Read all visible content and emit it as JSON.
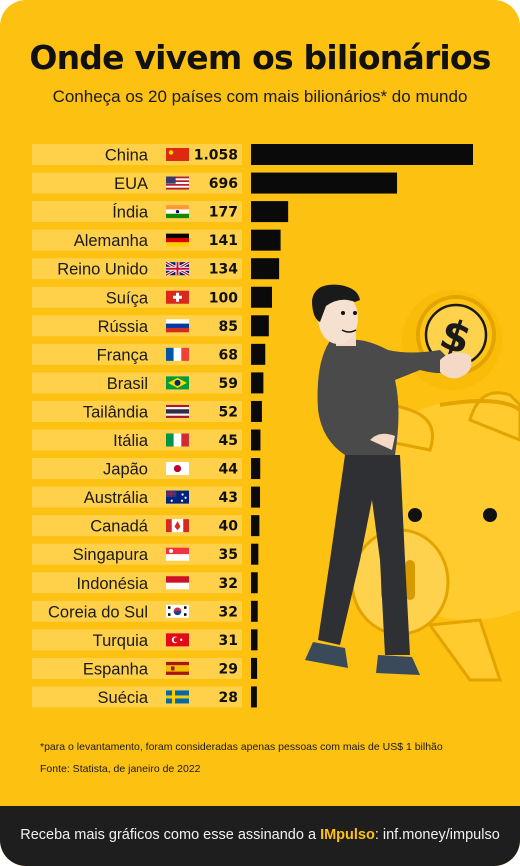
{
  "title": "Onde vivem os bilionários",
  "subtitle": "Conheça os 20 países com mais bilionários* do mundo",
  "note": "*para o levantamento, foram consideradas apenas pessoas com mais de US$ 1 bilhão",
  "source": "Fonte: Statista, de janeiro de 2022",
  "footer": {
    "prefix": "Receba mais gráficos como esse assinando a ",
    "brand": "IMpulso",
    "suffix": ": inf.money/impulso"
  },
  "colors": {
    "background": "#FDC112",
    "row_band": "#FFD04A",
    "bar": "#0a0a0a",
    "footer_bg": "#1E1E1E",
    "footer_brand": "#FDC112"
  },
  "illustration": [
    "man-icon",
    "piggy-bank-icon",
    "dollar-coin-icon"
  ],
  "chart_data": {
    "type": "bar",
    "orientation": "horizontal",
    "categories": [
      "China",
      "EUA",
      "Índia",
      "Alemanha",
      "Reino Unido",
      "Suíça",
      "Rússia",
      "França",
      "Brasil",
      "Tailândia",
      "Itália",
      "Japão",
      "Austrália",
      "Canadá",
      "Singapura",
      "Indonésia",
      "Coreia do Sul",
      "Turquia",
      "Espanha",
      "Suécia"
    ],
    "value_labels": [
      "1.058",
      "696",
      "177",
      "141",
      "134",
      "100",
      "85",
      "68",
      "59",
      "52",
      "45",
      "44",
      "43",
      "40",
      "35",
      "32",
      "32",
      "31",
      "29",
      "28"
    ],
    "values": [
      1058,
      696,
      177,
      141,
      134,
      100,
      85,
      68,
      59,
      52,
      45,
      44,
      43,
      40,
      35,
      32,
      32,
      31,
      29,
      28
    ],
    "flags": [
      "cn",
      "us",
      "in",
      "de",
      "gb",
      "ch",
      "ru",
      "fr",
      "br",
      "th",
      "it",
      "jp",
      "au",
      "ca",
      "sg",
      "id",
      "kr",
      "tr",
      "es",
      "se"
    ]
  }
}
